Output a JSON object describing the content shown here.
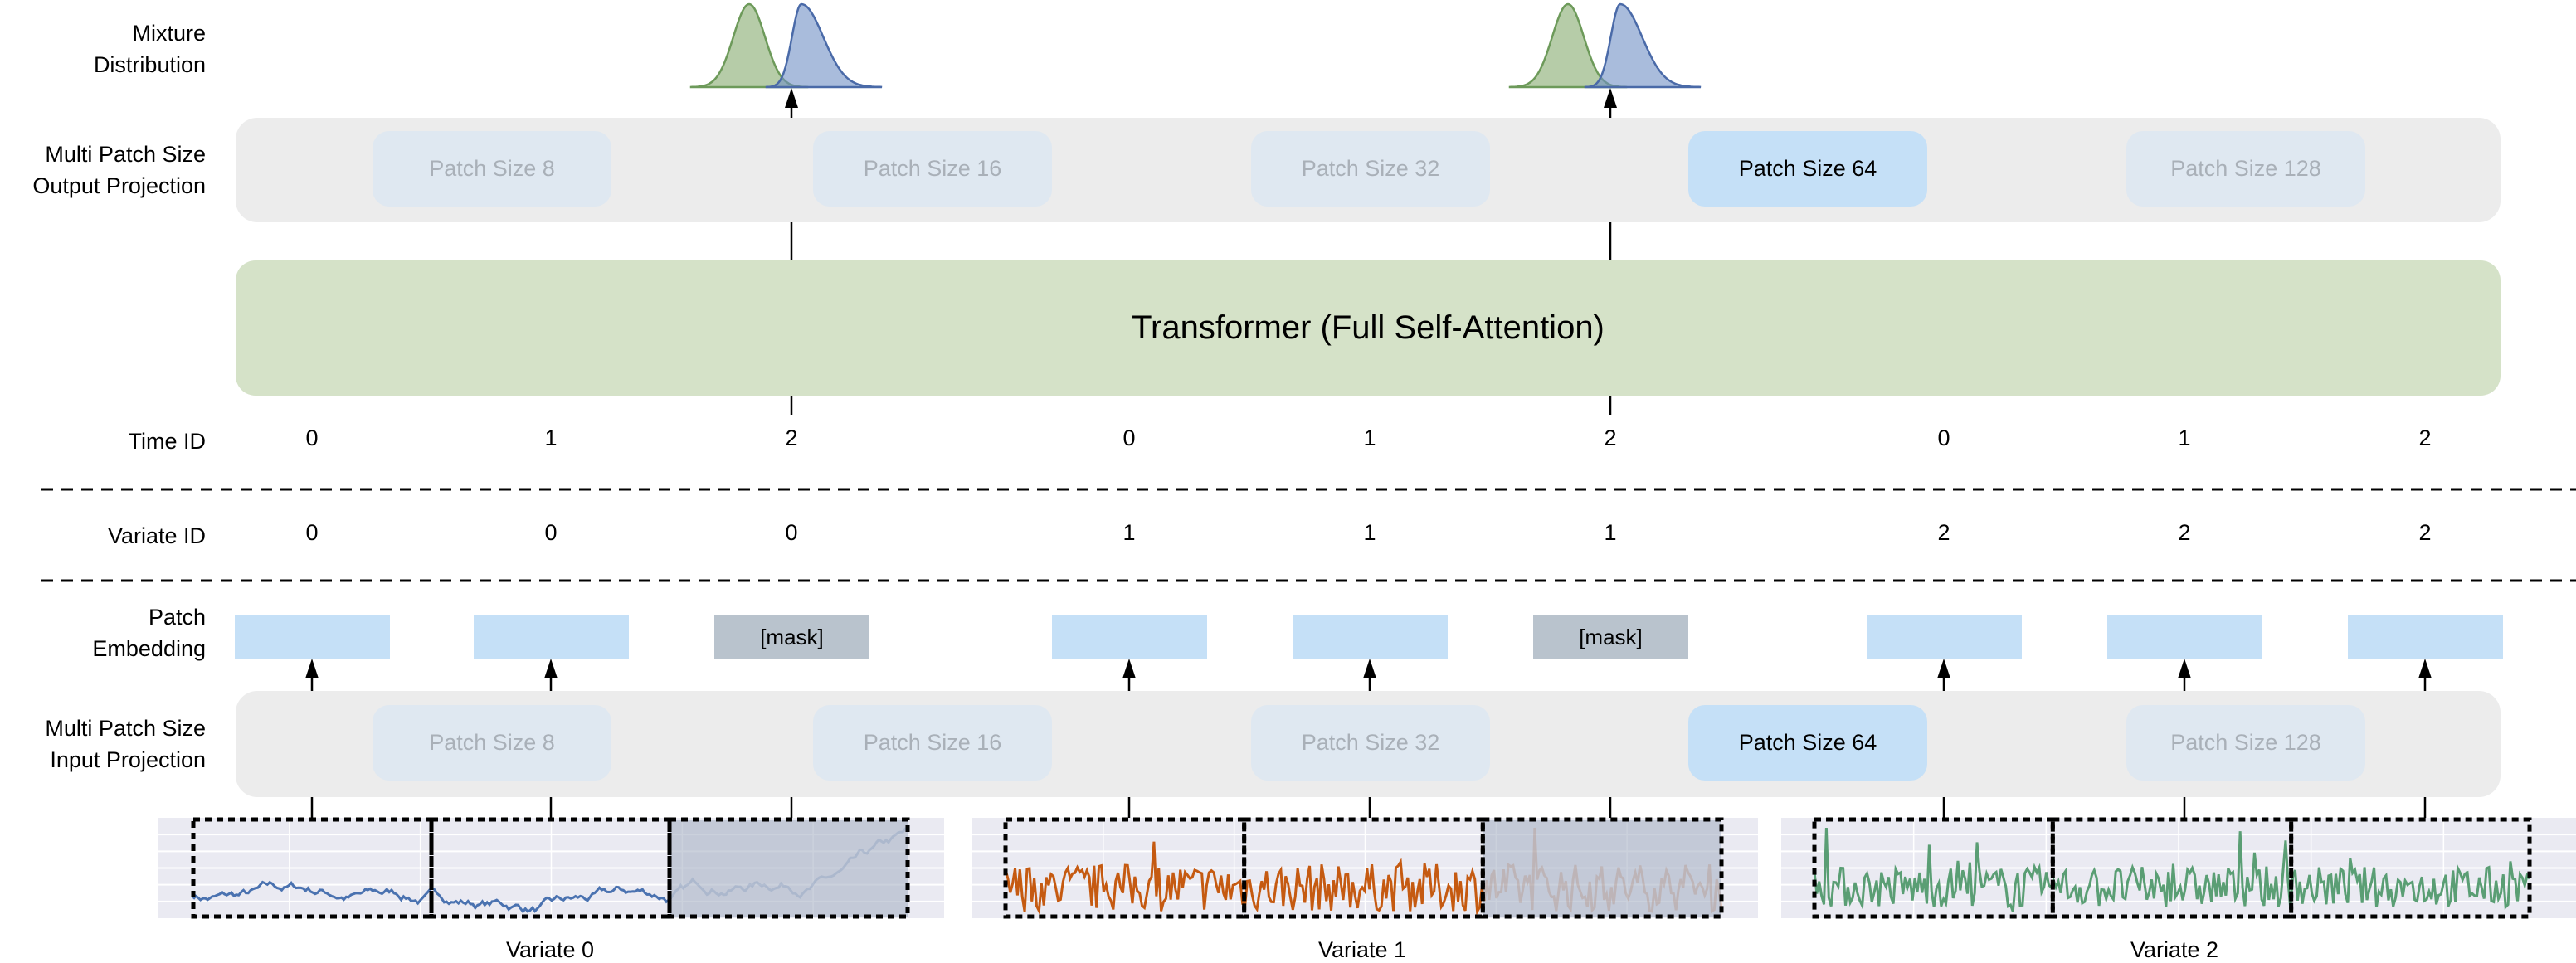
{
  "row_labels": {
    "mixture": [
      "Mixture",
      "Distribution"
    ],
    "output_projection": [
      "Multi Patch Size",
      "Output Projection"
    ],
    "time_id": "Time ID",
    "variate_id": "Variate ID",
    "patch_embedding": [
      "Patch",
      "Embedding"
    ],
    "input_projection": [
      "Multi Patch Size",
      "Input Projection"
    ]
  },
  "patch_sizes": [
    "Patch Size 8",
    "Patch Size 16",
    "Patch Size 32",
    "Patch Size 64",
    "Patch Size 128"
  ],
  "active_patch_size": "Patch Size 64",
  "transformer_label": "Transformer (Full Self-Attention)",
  "time_ids": [
    "0",
    "1",
    "2",
    "0",
    "1",
    "2",
    "0",
    "1",
    "2"
  ],
  "variate_ids": [
    "0",
    "0",
    "0",
    "1",
    "1",
    "1",
    "2",
    "2",
    "2"
  ],
  "mask_label": "[mask]",
  "tokens_masked": [
    false,
    false,
    true,
    false,
    false,
    true,
    false,
    false,
    false
  ],
  "variates": [
    {
      "label": "Variate 0",
      "color": "#4a72b0"
    },
    {
      "label": "Variate 1",
      "color": "#c55a11"
    },
    {
      "label": "Variate 2",
      "color": "#5a9e74"
    }
  ],
  "colors": {
    "distribution_a": "#8fb07a",
    "distribution_b": "#6f8fc4",
    "embedding": "#c5e0f7",
    "mask": "#b9c3cd",
    "transformer": "#d5e2c8",
    "projection_bg": "#ececec"
  }
}
